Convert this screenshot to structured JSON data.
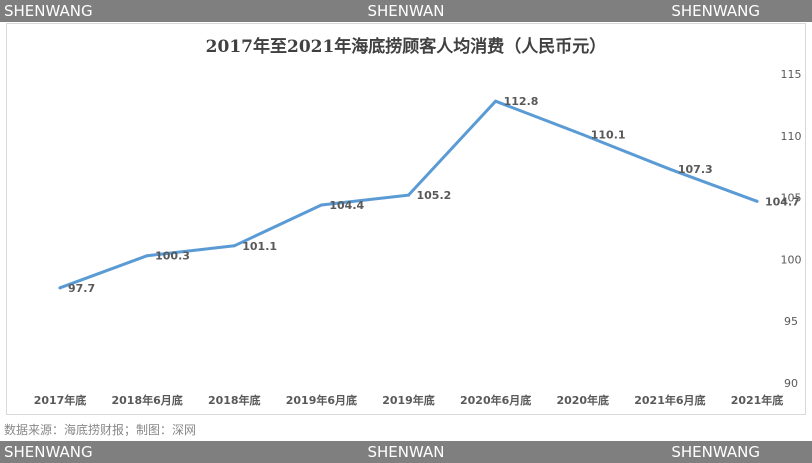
{
  "watermark": {
    "left": "SHENWANG",
    "center": "SHENWAN",
    "right": "SHENWANG"
  },
  "source_text": "数据来源：海底捞财报；制图：深网",
  "colors": {
    "line": "#5b9bd5",
    "axis_text": "#595959",
    "watermark_bar": "#7f7f7f"
  },
  "chart_data": {
    "type": "line",
    "title": "2017年至2021年海底捞顾客人均消费（人民币元）",
    "categories": [
      "2017年底",
      "2018年6月底",
      "2018年底",
      "2019年6月底",
      "2019年底",
      "2020年6月底",
      "2020年底",
      "2021年6月底",
      "2021年底"
    ],
    "series": [
      {
        "values": [
          97.7,
          100.3,
          101.1,
          104.4,
          105.2,
          112.8,
          110.1,
          107.3,
          104.7
        ]
      }
    ],
    "data_labels": [
      "97.7",
      "100.3",
      "101.1",
      "104.4",
      "105.2",
      "112.8",
      "110.1",
      "107.3",
      "104.7"
    ],
    "y_ticks": [
      90,
      95,
      100,
      105,
      110,
      115
    ],
    "ylim": [
      90,
      115
    ],
    "y_axis_side": "right",
    "grid": false,
    "legend": "none"
  }
}
